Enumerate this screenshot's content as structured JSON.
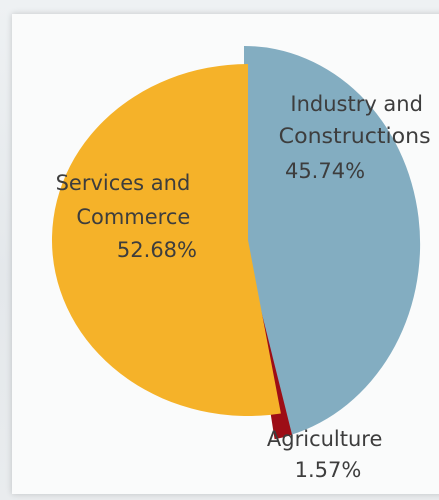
{
  "chart_data": {
    "type": "pie",
    "title": "",
    "exploded": true,
    "slices": [
      {
        "label_lines": [
          "Industry and",
          "Constructions"
        ],
        "value_label": "45.74%",
        "value": 45.74,
        "color": "#83adc1"
      },
      {
        "label_lines": [
          "Agriculture"
        ],
        "value_label": "1.57%",
        "value": 1.57,
        "color": "#9d0d16"
      },
      {
        "label_lines": [
          "Services and",
          "Commerce"
        ],
        "value_label": "52.68%",
        "value": 52.68,
        "color": "#f5b229"
      }
    ]
  }
}
